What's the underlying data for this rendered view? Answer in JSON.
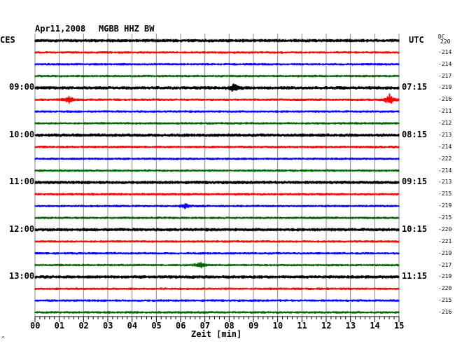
{
  "header": {
    "date": "Apr11,2008",
    "station": "MGBB HHZ BW"
  },
  "left_zone_label": "CES",
  "right_zone_label": "UTC",
  "dc_header": {
    "line1": "DC",
    "line2": "220"
  },
  "corner_mark": "^",
  "chart_data": {
    "type": "line",
    "title": "Apr11,2008 MGBB HHZ BW",
    "xlabel": "Zeit [min]",
    "x_ticks": [
      "00",
      "01",
      "02",
      "03",
      "04",
      "05",
      "06",
      "07",
      "08",
      "09",
      "10",
      "11",
      "12",
      "13",
      "14",
      "15"
    ],
    "xlim": [
      0,
      15
    ],
    "trace_colors": [
      "#000000",
      "#ff0000",
      "#0000ff",
      "#006400"
    ],
    "left_time_labels": [
      "09:00",
      "10:00",
      "11:00",
      "12:00",
      "13:00"
    ],
    "right_time_labels": [
      "07:15",
      "08:15",
      "09:15",
      "10:15",
      "11:15"
    ],
    "dc_values": [
      "-214",
      "-214",
      "-217",
      "-219",
      "-216",
      "-211",
      "-212",
      "-213",
      "-214",
      "-222",
      "-214",
      "-213",
      "-215",
      "-219",
      "-215",
      "-220",
      "-221",
      "-219",
      "-217",
      "-219",
      "-220",
      "-215",
      "-216"
    ],
    "events": [
      {
        "trace": 4,
        "minute": 8.2,
        "amplitude": "medium"
      },
      {
        "trace": 5,
        "minute": 1.4,
        "amplitude": "medium"
      },
      {
        "trace": 5,
        "minute": 14.6,
        "amplitude": "large"
      },
      {
        "trace": 14,
        "minute": 6.2,
        "amplitude": "small"
      },
      {
        "trace": 19,
        "minute": 6.8,
        "amplitude": "medium"
      }
    ]
  }
}
